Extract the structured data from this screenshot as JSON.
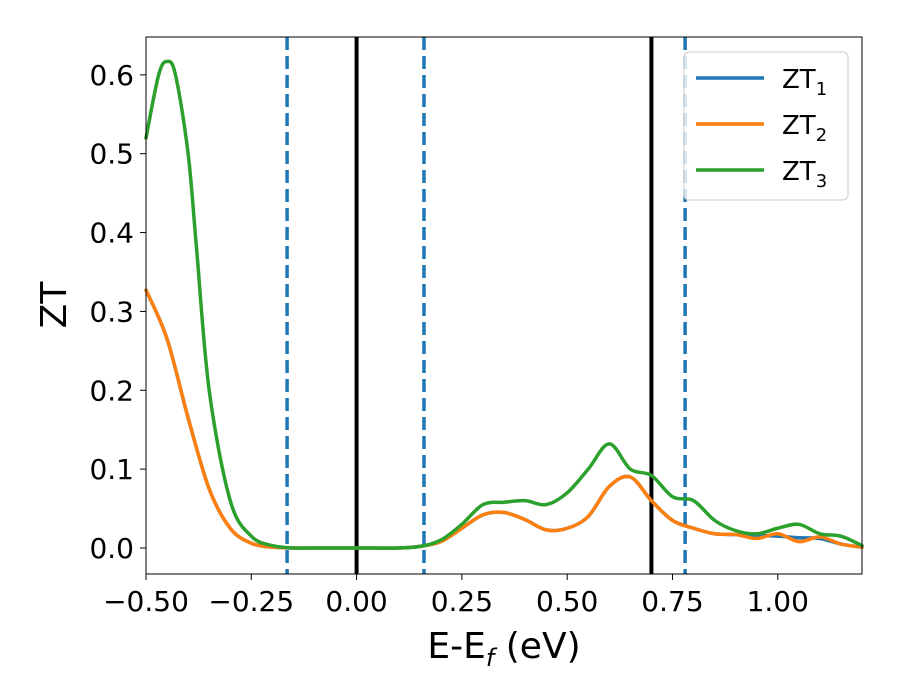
{
  "chart_data": {
    "type": "line",
    "xlabel": "E-E",
    "xlabel_sub": "f",
    "xlabel_unit": " (eV)",
    "ylabel": "ZT",
    "xlim": [
      -0.5,
      1.2
    ],
    "ylim": [
      -0.033,
      0.648
    ],
    "xticks": [
      -0.5,
      -0.25,
      0.0,
      0.25,
      0.5,
      0.75,
      1.0
    ],
    "xtick_labels": [
      "−0.50",
      "−0.25",
      "0.00",
      "0.25",
      "0.50",
      "0.75",
      "1.00"
    ],
    "yticks": [
      0.0,
      0.1,
      0.2,
      0.3,
      0.4,
      0.5,
      0.6
    ],
    "ytick_labels": [
      "0.0",
      "0.1",
      "0.2",
      "0.3",
      "0.4",
      "0.5",
      "0.6"
    ],
    "grid": false,
    "legend_position": "top-right",
    "vlines": [
      {
        "x": -0.165,
        "style": "dashed",
        "color": "#1f77b4"
      },
      {
        "x": 0.0,
        "style": "solid",
        "color": "#000000"
      },
      {
        "x": 0.16,
        "style": "dashed",
        "color": "#1f77b4"
      },
      {
        "x": 0.7,
        "style": "solid",
        "color": "#000000"
      },
      {
        "x": 0.78,
        "style": "dashed",
        "color": "#1f77b4"
      }
    ],
    "series": [
      {
        "name": "ZT",
        "sub": "1",
        "color": "#1f77b4",
        "x": [
          -0.5,
          -0.45,
          -0.4,
          -0.35,
          -0.3,
          -0.25,
          -0.2,
          -0.15,
          -0.1,
          0.0,
          0.1,
          0.15,
          0.2,
          0.25,
          0.3,
          0.35,
          0.4,
          0.45,
          0.5,
          0.55,
          0.6,
          0.65,
          0.7,
          0.75,
          0.8,
          0.85,
          0.9,
          0.95,
          1.0,
          1.05,
          1.1,
          1.15,
          1.2
        ],
        "y": [
          0.327,
          0.265,
          0.165,
          0.075,
          0.025,
          0.006,
          0.001,
          0.0,
          0.0,
          0.0,
          0.0,
          0.002,
          0.008,
          0.025,
          0.042,
          0.045,
          0.036,
          0.023,
          0.025,
          0.04,
          0.078,
          0.09,
          0.06,
          0.035,
          0.025,
          0.018,
          0.017,
          0.016,
          0.015,
          0.013,
          0.012,
          0.005,
          0.001
        ]
      },
      {
        "name": "ZT",
        "sub": "2",
        "color": "#ff7f0e",
        "x": [
          -0.5,
          -0.45,
          -0.4,
          -0.35,
          -0.3,
          -0.25,
          -0.2,
          -0.15,
          -0.1,
          0.0,
          0.1,
          0.15,
          0.2,
          0.25,
          0.3,
          0.35,
          0.4,
          0.45,
          0.5,
          0.55,
          0.6,
          0.65,
          0.7,
          0.75,
          0.8,
          0.85,
          0.9,
          0.95,
          1.0,
          1.05,
          1.1,
          1.15,
          1.2
        ],
        "y": [
          0.327,
          0.265,
          0.165,
          0.075,
          0.025,
          0.006,
          0.001,
          0.0,
          0.0,
          0.0,
          0.0,
          0.002,
          0.008,
          0.025,
          0.042,
          0.045,
          0.036,
          0.023,
          0.025,
          0.04,
          0.078,
          0.09,
          0.06,
          0.035,
          0.025,
          0.018,
          0.017,
          0.012,
          0.018,
          0.008,
          0.014,
          0.005,
          0.001
        ]
      },
      {
        "name": "ZT",
        "sub": "3",
        "color": "#2ca02c",
        "x": [
          -0.5,
          -0.47,
          -0.45,
          -0.43,
          -0.4,
          -0.38,
          -0.35,
          -0.3,
          -0.25,
          -0.2,
          -0.15,
          -0.1,
          0.0,
          0.1,
          0.15,
          0.2,
          0.25,
          0.3,
          0.35,
          0.4,
          0.45,
          0.5,
          0.55,
          0.6,
          0.65,
          0.7,
          0.75,
          0.8,
          0.85,
          0.9,
          0.95,
          1.0,
          1.05,
          1.1,
          1.15,
          1.2
        ],
        "y": [
          0.52,
          0.6,
          0.617,
          0.6,
          0.5,
          0.38,
          0.2,
          0.06,
          0.015,
          0.003,
          0.0,
          0.0,
          0.0,
          0.0,
          0.002,
          0.01,
          0.03,
          0.055,
          0.058,
          0.06,
          0.055,
          0.07,
          0.1,
          0.132,
          0.1,
          0.092,
          0.065,
          0.06,
          0.035,
          0.022,
          0.018,
          0.025,
          0.03,
          0.018,
          0.015,
          0.003
        ]
      }
    ]
  }
}
